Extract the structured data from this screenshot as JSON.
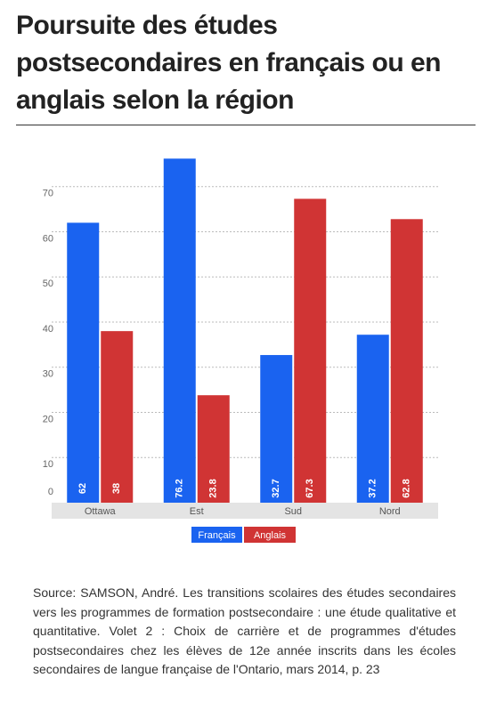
{
  "chart_data": {
    "type": "bar",
    "title": "Poursuite des études postsecondaires en français ou en anglais selon la région",
    "categories": [
      "Ottawa",
      "Est",
      "Sud",
      "Nord"
    ],
    "series": [
      {
        "name": "Français",
        "color": "#1a63f0",
        "values": [
          62,
          76.2,
          32.7,
          37.2
        ]
      },
      {
        "name": "Anglais",
        "color": "#d03434",
        "values": [
          38,
          23.8,
          67.3,
          62.8
        ]
      }
    ],
    "ylim": [
      0,
      80
    ],
    "yticks": [
      0,
      10,
      20,
      30,
      40,
      50,
      60,
      70
    ],
    "grid": true,
    "legend": "bottom",
    "source": "Source: SAMSON, André. Les transitions scolaires des études secondaires vers les programmes de formation postsecondaire : une étude qualitative et quantitative. Volet 2 : Choix de carrière et de programmes d'études postsecondaires chez les élèves de 12e année inscrits dans les écoles secondaires de langue française de l'Ontario, mars 2014, p. 23"
  }
}
